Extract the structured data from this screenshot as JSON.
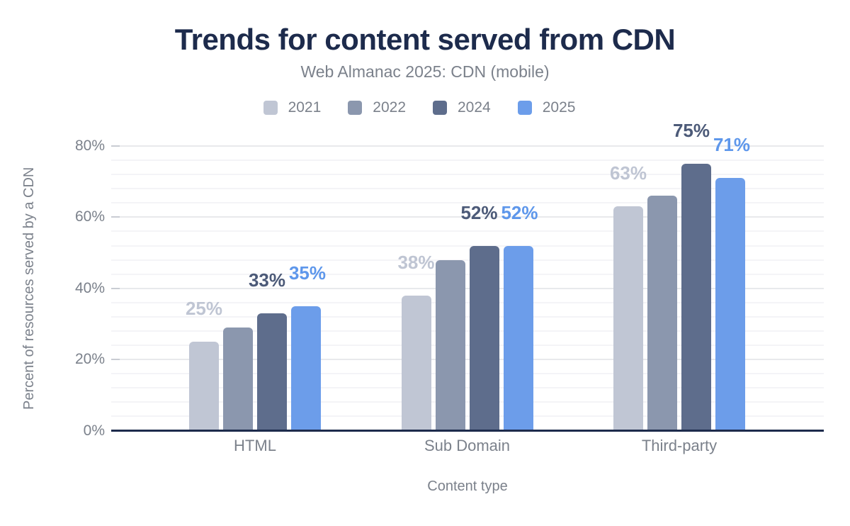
{
  "chart_data": {
    "type": "bar",
    "title": "Trends for content served from CDN",
    "subtitle": "Web Almanac 2025: CDN (mobile)",
    "xlabel": "Content type",
    "ylabel": "Percent of resources served by a CDN",
    "categories": [
      "HTML",
      "Sub Domain",
      "Third-party"
    ],
    "ylim": [
      0,
      80
    ],
    "ytick_interval": 20,
    "minor_grid_interval": 4,
    "ytick_suffix": "%",
    "legend_position": "top",
    "grid": true,
    "series": [
      {
        "name": "2021",
        "color": "#c0c6d4",
        "label_color": "#bfc5d3",
        "values": [
          25,
          38,
          63
        ],
        "labels": [
          "25%",
          "38%",
          "63%"
        ]
      },
      {
        "name": "2022",
        "color": "#8b97ae",
        "label_color": "#8b97ae",
        "values": [
          29,
          48,
          66
        ],
        "labels": [
          null,
          null,
          null
        ]
      },
      {
        "name": "2024",
        "color": "#5e6d8c",
        "label_color": "#4c5a78",
        "values": [
          33,
          52,
          75
        ],
        "labels": [
          "33%",
          "52%",
          "75%"
        ]
      },
      {
        "name": "2025",
        "color": "#6c9dea",
        "label_color": "#5e97eb",
        "values": [
          35,
          52,
          71
        ],
        "labels": [
          "35%",
          "52%",
          "71%"
        ]
      }
    ]
  },
  "colors": {
    "title_text": "#1d2b4c",
    "muted_text": "#7b818b",
    "axis_line": "#1d2b4c",
    "major_grid": "#e8e9ec",
    "minor_grid": "#f4f4f7",
    "tick_mark": "#c9ccd3",
    "background": "#ffffff"
  }
}
